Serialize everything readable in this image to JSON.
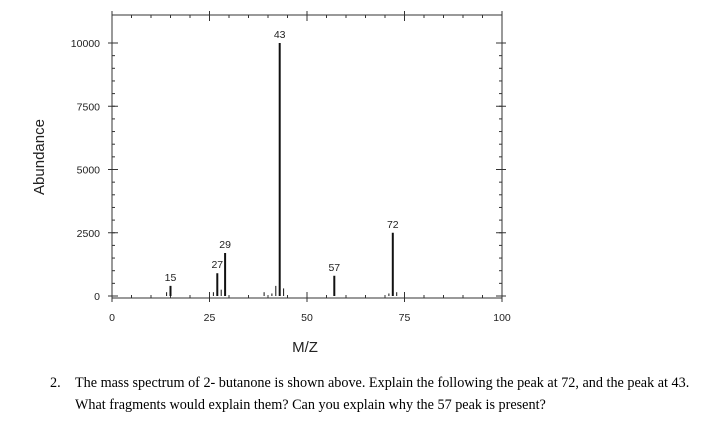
{
  "chart_data": {
    "type": "bar",
    "xlabel": "M/Z",
    "ylabel": "Abundance",
    "xlim": [
      0,
      100
    ],
    "ylim": [
      0,
      10000
    ],
    "x_ticks": [
      "0",
      "25",
      "50",
      "75",
      "100"
    ],
    "y_ticks": [
      "0",
      "2500",
      "5000",
      "7500",
      "10000"
    ],
    "peaks": [
      {
        "mz": 14,
        "abundance": 150
      },
      {
        "mz": 15,
        "abundance": 400,
        "label": "15"
      },
      {
        "mz": 26,
        "abundance": 150
      },
      {
        "mz": 27,
        "abundance": 900,
        "label": "27"
      },
      {
        "mz": 28,
        "abundance": 250
      },
      {
        "mz": 29,
        "abundance": 1700,
        "label": "29"
      },
      {
        "mz": 39,
        "abundance": 150
      },
      {
        "mz": 41,
        "abundance": 100
      },
      {
        "mz": 42,
        "abundance": 400
      },
      {
        "mz": 43,
        "abundance": 10000,
        "label": "43"
      },
      {
        "mz": 44,
        "abundance": 300
      },
      {
        "mz": 57,
        "abundance": 800,
        "label": "57"
      },
      {
        "mz": 71,
        "abundance": 100
      },
      {
        "mz": 72,
        "abundance": 2500,
        "label": "72"
      },
      {
        "mz": 73,
        "abundance": 150
      }
    ]
  },
  "question": {
    "number": "2.",
    "text": "The mass spectrum of 2- butanone is shown above. Explain the following the peak at 72, and the peak at 43.  What fragments would explain them? Can you explain why the 57 peak is present?"
  }
}
